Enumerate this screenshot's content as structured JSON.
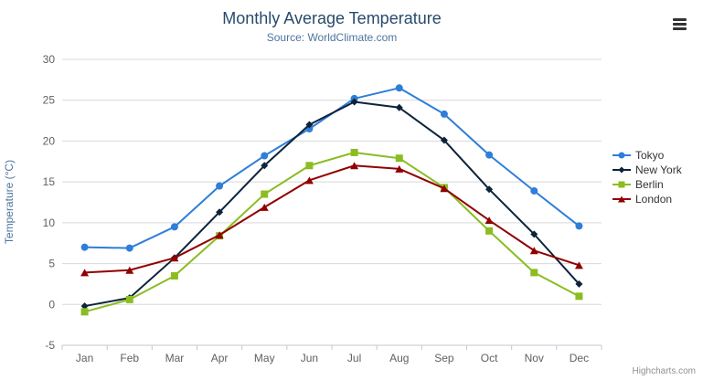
{
  "chart_data": {
    "type": "line",
    "title": "Monthly Average Temperature",
    "subtitle": "Source: WorldClimate.com",
    "xlabel": "",
    "ylabel": "Temperature (°C)",
    "ylim": [
      -5,
      30
    ],
    "ytick_interval": 5,
    "grid": true,
    "legend_position": "right",
    "categories": [
      "Jan",
      "Feb",
      "Mar",
      "Apr",
      "May",
      "Jun",
      "Jul",
      "Aug",
      "Sep",
      "Oct",
      "Nov",
      "Dec"
    ],
    "series": [
      {
        "name": "Tokyo",
        "color": "#2f7ed8",
        "marker": "circle",
        "values": [
          7.0,
          6.9,
          9.5,
          14.5,
          18.2,
          21.5,
          25.2,
          26.5,
          23.3,
          18.3,
          13.9,
          9.6
        ]
      },
      {
        "name": "New York",
        "color": "#0d233a",
        "marker": "diamond",
        "values": [
          -0.2,
          0.8,
          5.7,
          11.3,
          17.0,
          22.0,
          24.8,
          24.1,
          20.1,
          14.1,
          8.6,
          2.5
        ]
      },
      {
        "name": "Berlin",
        "color": "#8bbc21",
        "marker": "square",
        "values": [
          -0.9,
          0.6,
          3.5,
          8.4,
          13.5,
          17.0,
          18.6,
          17.9,
          14.3,
          9.0,
          3.9,
          1.0
        ]
      },
      {
        "name": "London",
        "color": "#910000",
        "marker": "triangle",
        "values": [
          3.9,
          4.2,
          5.7,
          8.5,
          11.9,
          15.2,
          17.0,
          16.6,
          14.2,
          10.3,
          6.6,
          4.8
        ]
      }
    ]
  },
  "credits": "Highcharts.com",
  "export_menu": {
    "icon": "hamburger-icon"
  }
}
